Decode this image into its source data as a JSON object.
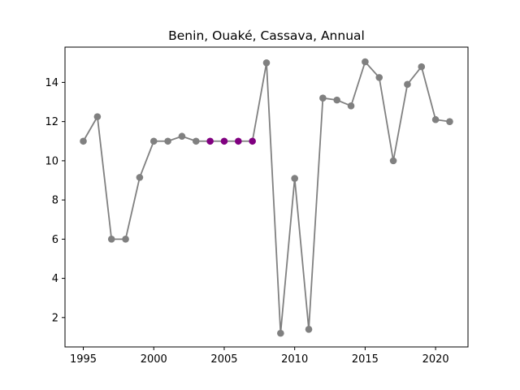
{
  "chart_data": {
    "type": "line",
    "title": "Benin, Ouaké, Cassava, Annual",
    "xlabel": "",
    "ylabel": "",
    "xlim": [
      1993.7,
      2022.3
    ],
    "ylim": [
      0.5,
      15.8
    ],
    "x_ticks": [
      1995,
      2000,
      2005,
      2010,
      2015,
      2020
    ],
    "y_ticks": [
      2,
      4,
      6,
      8,
      10,
      12,
      14
    ],
    "grid": false,
    "colors": {
      "line": "#808080",
      "marker": "#808080",
      "highlight": "#800080"
    },
    "series": [
      {
        "x": [
          1995,
          1996,
          1997,
          1998,
          1999,
          2000,
          2001,
          2002,
          2003,
          2004,
          2005,
          2006,
          2007,
          2008,
          2009,
          2010,
          2011,
          2012,
          2013,
          2014,
          2015,
          2016,
          2017,
          2018,
          2019,
          2020,
          2021
        ],
        "values": [
          11.0,
          12.25,
          6.0,
          6.0,
          9.15,
          11.0,
          11.0,
          11.25,
          11.0,
          11.0,
          11.0,
          11.0,
          11.0,
          15.0,
          1.2,
          9.1,
          1.4,
          13.2,
          13.1,
          12.8,
          15.05,
          14.25,
          10.0,
          13.9,
          14.8,
          12.1,
          12.0
        ],
        "highlighted_x": [
          2004,
          2005,
          2006,
          2007
        ]
      }
    ]
  }
}
